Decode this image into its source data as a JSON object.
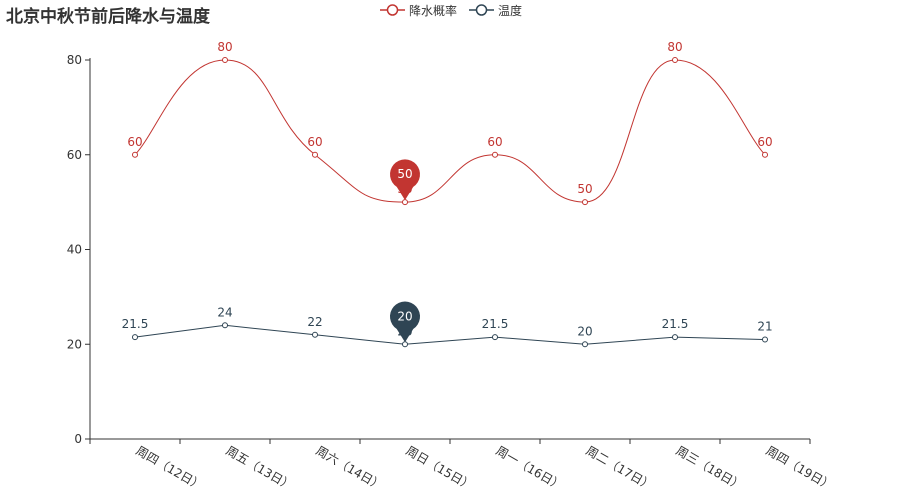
{
  "chart_data": {
    "type": "line",
    "title": "北京中秋节前后降水与温度",
    "categories": [
      "周四（12日）",
      "周五（13日）",
      "周六（14日）",
      "周日（15日）",
      "周一（16日）",
      "周二（17日）",
      "周三（18日）",
      "周四（19日）"
    ],
    "series": [
      {
        "name": "降水概率",
        "values": [
          60,
          80,
          60,
          50,
          60,
          50,
          80,
          60
        ],
        "labels": [
          "60",
          "80",
          "60",
          "50",
          "60",
          "50",
          "80",
          "60"
        ],
        "color": "#c23531",
        "smooth": true,
        "markpoint": {
          "category_index": 3,
          "label": "50"
        }
      },
      {
        "name": "温度",
        "values": [
          21.5,
          24,
          22,
          20,
          21.5,
          20,
          21.5,
          21
        ],
        "labels": [
          "21.5",
          "24",
          "22",
          "20",
          "21.5",
          "20",
          "21.5",
          "21"
        ],
        "color": "#2f4554",
        "smooth": false,
        "markpoint": {
          "category_index": 3,
          "label": "20"
        }
      }
    ],
    "ylim": [
      0,
      80
    ],
    "yticks": [
      "0",
      "20",
      "40",
      "60",
      "80"
    ],
    "grid": false,
    "legend_position": "top-center"
  }
}
